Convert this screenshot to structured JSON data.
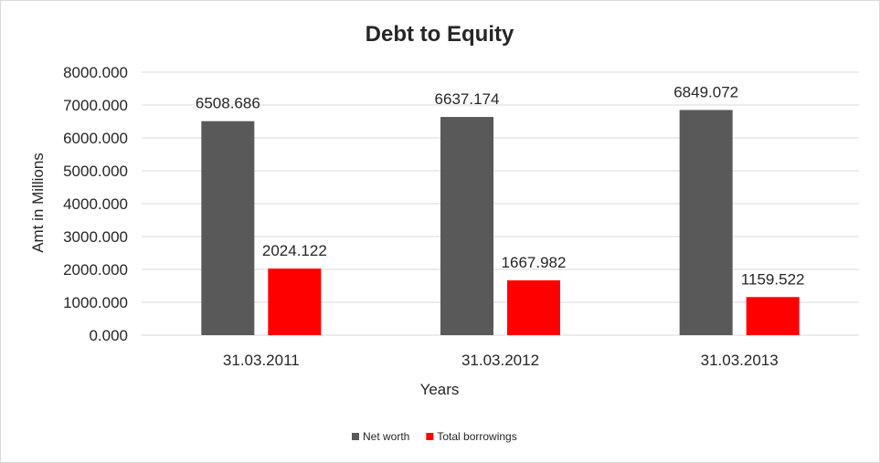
{
  "chart_data": {
    "type": "bar",
    "title": "Debt to Equity",
    "xlabel": "Years",
    "ylabel": "Amt in Millions",
    "categories": [
      "31.03.2011",
      "31.03.2012",
      "31.03.2013"
    ],
    "series": [
      {
        "name": "Net worth",
        "color": "#595959",
        "values": [
          6508.686,
          6637.174,
          6849.072
        ],
        "labels": [
          "6508.686",
          "6637.174",
          "6849.072"
        ]
      },
      {
        "name": "Total borrowings",
        "color": "#ff0000",
        "values": [
          2024.122,
          1667.982,
          1159.522
        ],
        "labels": [
          "2024.122",
          "1667.982",
          "1159.522"
        ]
      }
    ],
    "ylim": [
      0,
      8000
    ],
    "yticks": [
      "0.000",
      "1000.000",
      "2000.000",
      "3000.000",
      "4000.000",
      "5000.000",
      "6000.000",
      "7000.000",
      "8000.000"
    ],
    "grid": true,
    "legend_position": "bottom-center"
  }
}
